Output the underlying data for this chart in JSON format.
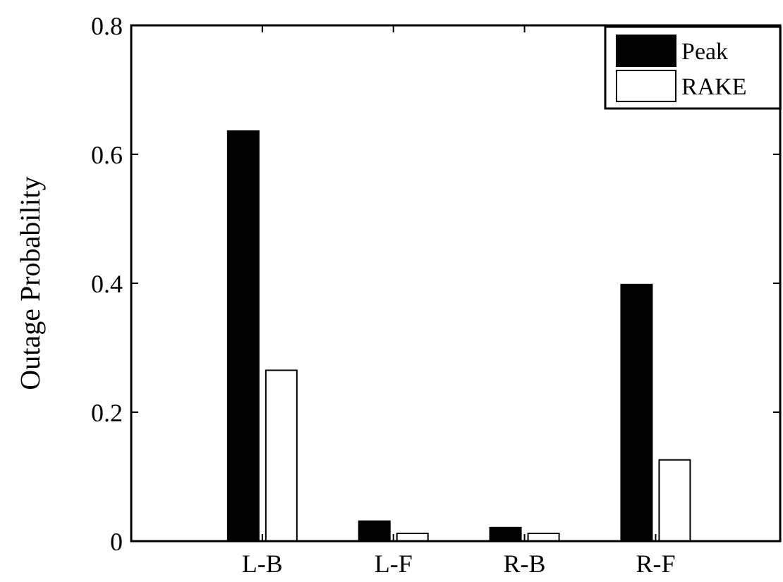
{
  "chart_data": {
    "type": "bar",
    "ylabel": "Outage Probability",
    "categories": [
      "L-B",
      "L-F",
      "R-B",
      "R-F"
    ],
    "series": [
      {
        "name": "Peak",
        "color": "#000000",
        "values": [
          0.636,
          0.031,
          0.021,
          0.398
        ]
      },
      {
        "name": "RAKE",
        "color": "#ffffff",
        "values": [
          0.265,
          0.012,
          0.012,
          0.126
        ]
      }
    ],
    "ylim": [
      0,
      0.8
    ],
    "yticks": [
      0,
      0.2,
      0.4,
      0.6,
      0.8
    ],
    "grid": false,
    "legend": "top right"
  }
}
